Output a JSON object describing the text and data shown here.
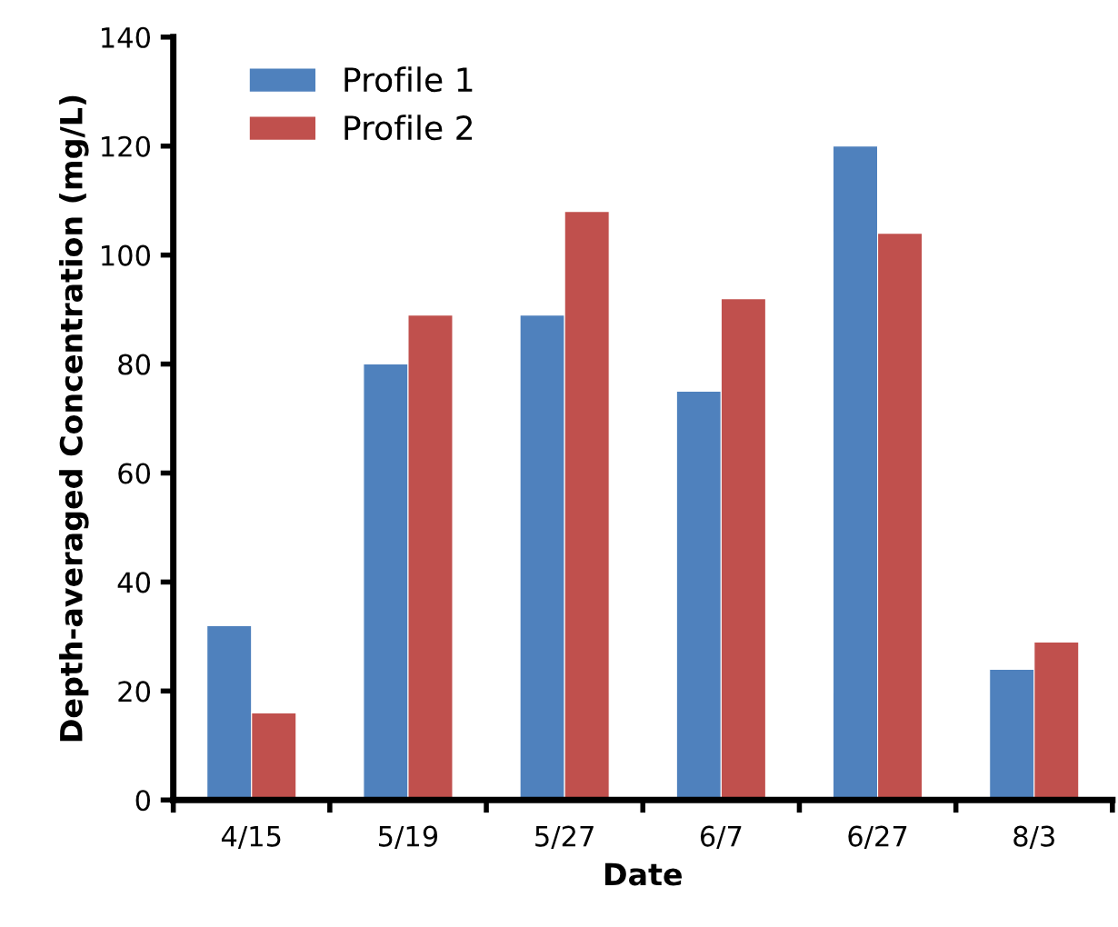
{
  "chart_data": {
    "type": "bar",
    "xlabel": "Date",
    "ylabel": "Depth-averaged Concentration (mg/L)",
    "categories": [
      "4/15",
      "5/19",
      "5/27",
      "6/7",
      "6/27",
      "8/3"
    ],
    "series": [
      {
        "name": "Profile 1",
        "color": "#4f81bd",
        "values": [
          32,
          80,
          89,
          75,
          120,
          24
        ]
      },
      {
        "name": "Profile 2",
        "color": "#c0504d",
        "values": [
          16,
          89,
          108,
          92,
          104,
          29
        ]
      }
    ],
    "ylim": [
      0,
      140
    ],
    "yticks": [
      0,
      20,
      40,
      60,
      80,
      100,
      120,
      140
    ],
    "grid": false,
    "legend": "top left"
  }
}
